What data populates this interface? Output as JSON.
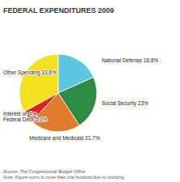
{
  "chart_data": {
    "type": "pie",
    "title": "FEDERAL EXPENDITURES 2009",
    "categories": [
      "National Defense 18.8%",
      "Social Security 23%",
      "Medicare and Medicaid 21.7%",
      "Interest on the\nFederal Debt 5.3%",
      "Other Spending 33.8%"
    ],
    "values": [
      18.8,
      23.0,
      21.7,
      5.3,
      33.8
    ],
    "colors": [
      "#5BC8E0",
      "#2E8B44",
      "#E07B30",
      "#E02020",
      "#F5E020"
    ],
    "annotations": [
      "Source: The Congressional Budget Office.\nNote: Figure sums to more than one hundred due to rounding."
    ]
  }
}
